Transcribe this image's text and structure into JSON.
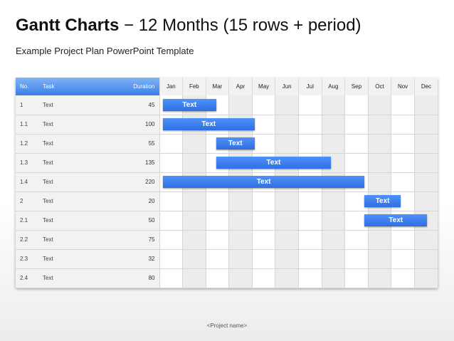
{
  "title": {
    "bold": "Gantt Charts",
    "rest": " − 12 Months (15 rows + period)"
  },
  "subtitle": "Example Project Plan PowerPoint Template",
  "table": {
    "headers": {
      "no": "No.",
      "task": "Task",
      "duration": "Duration"
    },
    "months": [
      "Jan",
      "Feb",
      "Mar",
      "Apr",
      "May",
      "Jun",
      "Jul",
      "Aug",
      "Sep",
      "Oct",
      "Nov",
      "Dec"
    ],
    "rows": [
      {
        "no": "1",
        "task": "Text",
        "duration": "45"
      },
      {
        "no": "1.1",
        "task": "Text",
        "duration": "100"
      },
      {
        "no": "1.2",
        "task": "Text",
        "duration": "55"
      },
      {
        "no": "1.3",
        "task": "Text",
        "duration": "135"
      },
      {
        "no": "1.4",
        "task": "Text",
        "duration": "220"
      },
      {
        "no": "2",
        "task": "Text",
        "duration": "20"
      },
      {
        "no": "2.1",
        "task": "Text",
        "duration": "50"
      },
      {
        "no": "2.2",
        "task": "Text",
        "duration": "75"
      },
      {
        "no": "2.3",
        "task": "Text",
        "duration": "32"
      },
      {
        "no": "2.4",
        "task": "Text",
        "duration": "80"
      }
    ]
  },
  "bars": [
    {
      "row": 0,
      "start_month": 0.15,
      "end_month": 2.45,
      "label": "Text"
    },
    {
      "row": 1,
      "start_month": 0.15,
      "end_month": 4.1,
      "label": "Text"
    },
    {
      "row": 2,
      "start_month": 2.45,
      "end_month": 4.1,
      "label": "Text"
    },
    {
      "row": 3,
      "start_month": 2.45,
      "end_month": 7.4,
      "label": "Text"
    },
    {
      "row": 4,
      "start_month": 0.15,
      "end_month": 8.85,
      "label": "Text"
    },
    {
      "row": 5,
      "start_month": 8.85,
      "end_month": 10.4,
      "label": "Text"
    },
    {
      "row": 6,
      "start_month": 8.85,
      "end_month": 11.55,
      "label": "Text"
    }
  ],
  "footer": "<Project name>",
  "colors": {
    "header_blue": "#3b7fe6",
    "bar_blue": "#2f6fe0",
    "shade": "#ececec"
  }
}
